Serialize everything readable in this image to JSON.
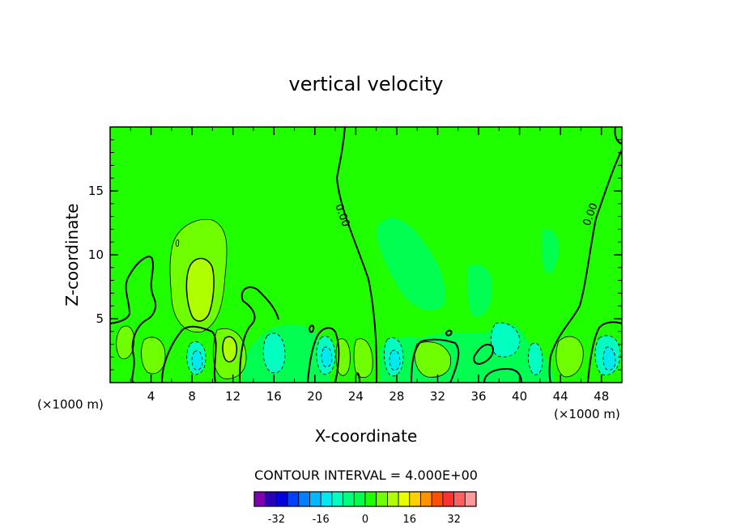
{
  "chart_data": {
    "type": "contour",
    "title": "vertical velocity",
    "xlabel": "X-coordinate",
    "ylabel": "Z-coordinate",
    "x_unit": "(×1000 m)",
    "x_unit_right": "(×1000 m)",
    "xlim": [
      0,
      50
    ],
    "ylim": [
      0,
      20
    ],
    "xticks": [
      4,
      8,
      12,
      16,
      20,
      24,
      28,
      32,
      36,
      40,
      44,
      48
    ],
    "yticks": [
      5,
      10,
      15
    ],
    "contour_interval_text": "CONTOUR INTERVAL = 4.000E+00",
    "contour_interval": 4.0,
    "contour_labels": [
      "0.00",
      "0.00"
    ],
    "colorbar": {
      "levels": [
        -36,
        -32,
        -28,
        -24,
        -20,
        -16,
        -12,
        -8,
        -4,
        0,
        4,
        8,
        12,
        16,
        20,
        24,
        28,
        32,
        36
      ],
      "colors": [
        "#7f00b0",
        "#2a00b8",
        "#0000e0",
        "#0040ff",
        "#0080ff",
        "#00b8ff",
        "#00e8f0",
        "#00ffc0",
        "#00ff80",
        "#00ff50",
        "#20ff00",
        "#70ff00",
        "#b0ff00",
        "#e8ff00",
        "#ffd000",
        "#ff9400",
        "#ff5000",
        "#ff3030",
        "#ff6060",
        "#ff9898"
      ],
      "tick_labels": [
        "-32",
        "-16",
        "0",
        "16",
        "32"
      ],
      "tick_values": [
        -32,
        -16,
        0,
        16,
        32
      ]
    },
    "features": [
      {
        "kind": "updraft",
        "x": 8.6,
        "z": 7.5,
        "peak_level": 8
      },
      {
        "kind": "updraft",
        "x": 10.5,
        "z": 7.0,
        "peak_level": 4
      },
      {
        "kind": "downdraft",
        "x": 29.5,
        "z": 9.5,
        "peak_level": -4
      },
      {
        "kind": "downdraft",
        "x": 36.5,
        "z": 7.5,
        "peak_level": -4
      },
      {
        "kind": "downdraft",
        "x": 43.5,
        "z": 10.0,
        "peak_level": -4
      },
      {
        "kind": "downdraft",
        "x": 8.5,
        "z": 1.8,
        "peak_level": -8
      },
      {
        "kind": "downdraft",
        "x": 21.0,
        "z": 2.5,
        "peak_level": -8
      },
      {
        "kind": "downdraft",
        "x": 27.8,
        "z": 2.0,
        "peak_level": -8
      },
      {
        "kind": "downdraft",
        "x": 48.8,
        "z": 2.0,
        "peak_level": -8
      },
      {
        "kind": "updraft",
        "x": 11.8,
        "z": 2.6,
        "peak_level": 8
      },
      {
        "kind": "updraft",
        "x": 45.0,
        "z": 2.0,
        "peak_level": 4
      }
    ]
  }
}
